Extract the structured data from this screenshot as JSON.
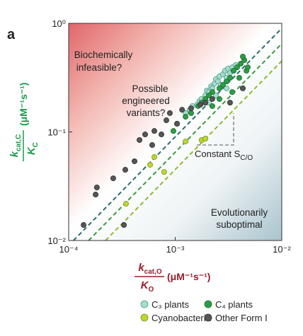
{
  "panel_label": "a",
  "chart_data": {
    "type": "scatter",
    "xscale": "log",
    "yscale": "log",
    "xlim": [
      0.0001,
      0.01
    ],
    "ylim": [
      0.01,
      1
    ],
    "xticks": [
      {
        "value": 0.0001,
        "label": "10⁻⁴"
      },
      {
        "value": 0.001,
        "label": "10⁻³"
      },
      {
        "value": 0.01,
        "label": "10⁻²"
      }
    ],
    "yticks": [
      {
        "value": 0.01,
        "label": "10⁻²"
      },
      {
        "value": 0.1,
        "label": "10⁻¹"
      },
      {
        "value": 1,
        "label": "10⁰"
      }
    ],
    "xlabel": {
      "num": "k",
      "num_sub": "cat,O",
      "den": "K",
      "den_sub": "O",
      "units": "(μM⁻¹s⁻¹)",
      "color": "#9b1c2a"
    },
    "ylabel": {
      "num": "k",
      "num_sub": "cat,C",
      "den": "K",
      "den_sub": "C",
      "units": "(μM⁻¹s⁻¹)",
      "color": "#1a9a48"
    },
    "annotations": [
      "Biochemically",
      "infeasible?",
      "Possible",
      "engineered",
      "variants?",
      "Evolutionarily",
      "suboptimal"
    ],
    "constant_label": {
      "text": "Constant S",
      "sub": "C/O"
    },
    "reference_lines": [
      {
        "color": "#2b6b6b",
        "x": [
          0.000111,
          0.01
        ],
        "y": [
          0.01,
          0.9
        ]
      },
      {
        "color": "#3e9a3e",
        "x": [
          0.000154,
          0.01
        ],
        "y": [
          0.01,
          0.65
        ]
      },
      {
        "color": "#8cbb2f",
        "x": [
          0.000222,
          0.01
        ],
        "y": [
          0.01,
          0.45
        ]
      }
    ],
    "series": [
      {
        "name": "C₃ plants",
        "color": "#a6dccd",
        "edge": "#4f9a8a",
        "x": [
          0.00125,
          0.00137,
          0.00145,
          0.0016,
          0.00169,
          0.00177,
          0.00192,
          0.00198,
          0.00207,
          0.00217,
          0.00223,
          0.00234,
          0.00241,
          0.00252,
          0.0026,
          0.00268,
          0.00281,
          0.00294,
          0.00303,
          0.00313,
          0.00327,
          0.00343,
          0.00353,
          0.0037,
          0.00303,
          0.00241,
          0.00207
        ],
        "y": [
          0.149,
          0.16,
          0.173,
          0.178,
          0.192,
          0.201,
          0.217,
          0.24,
          0.233,
          0.263,
          0.252,
          0.279,
          0.306,
          0.292,
          0.325,
          0.271,
          0.34,
          0.366,
          0.315,
          0.383,
          0.35,
          0.394,
          0.366,
          0.413,
          0.252,
          0.217,
          0.186
        ]
      },
      {
        "name": "C₄ plants",
        "color": "#2e9b47",
        "edge": "#1d6e30",
        "x": [
          0.000962,
          0.00104,
          0.00125,
          0.00141,
          0.00164,
          0.00192,
          0.00223,
          0.0026,
          0.00303,
          0.00281,
          0.00327,
          0.00353,
          0.00381,
          0.00412,
          0.00445,
          0.00466,
          0.0048,
          0.00399,
          0.0026,
          0.00223,
          0.00207,
          0.00177,
          0.00343,
          0.00431
        ],
        "y": [
          0.102,
          0.119,
          0.138,
          0.149,
          0.173,
          0.201,
          0.233,
          0.252,
          0.292,
          0.271,
          0.315,
          0.366,
          0.394,
          0.425,
          0.458,
          0.366,
          0.394,
          0.315,
          0.201,
          0.173,
          0.217,
          0.186,
          0.233,
          0.494
        ]
      },
      {
        "name": "Cyanobacteria",
        "color": "#bcd631",
        "edge": "#7d9420",
        "x": [
          0.000345,
          0.000581,
          0.000788,
          0.000637,
          0.00125,
          0.00177,
          0.00192
        ],
        "y": [
          0.0218,
          0.0498,
          0.0428,
          0.0587,
          0.0817,
          0.0842,
          0.0867
        ]
      },
      {
        "name": "Other Form I",
        "color": "#555555",
        "edge": "#333333",
        "x": [
          0.000138,
          0.000179,
          0.000184,
          0.000262,
          0.00033,
          0.00034,
          0.000415,
          0.000462,
          0.000522,
          0.000608,
          0.000637,
          0.000742,
          0.000826,
          0.000891,
          0.00104,
          0.00116,
          0.00141,
          0.00172,
          0.00192,
          0.00223,
          0.00327,
          0.00431
        ],
        "y": [
          0.0139,
          0.0265,
          0.0308,
          0.0374,
          0.0139,
          0.0448,
          0.0537,
          0.0842,
          0.0948,
          0.0757,
          0.102,
          0.0948,
          0.128,
          0.149,
          0.119,
          0.16,
          0.165,
          0.178,
          0.186,
          0.201,
          0.186,
          0.252
        ]
      }
    ]
  }
}
